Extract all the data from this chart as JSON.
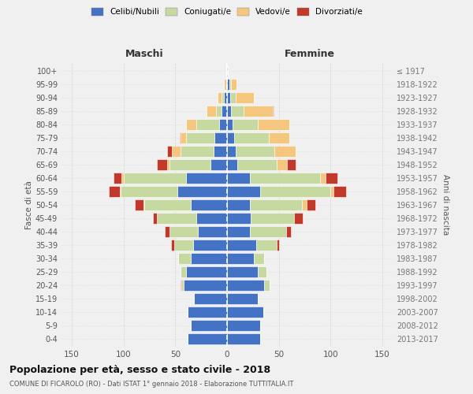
{
  "age_groups": [
    "0-4",
    "5-9",
    "10-14",
    "15-19",
    "20-24",
    "25-29",
    "30-34",
    "35-39",
    "40-44",
    "45-49",
    "50-54",
    "55-59",
    "60-64",
    "65-69",
    "70-74",
    "75-79",
    "80-84",
    "85-89",
    "90-94",
    "95-99",
    "100+"
  ],
  "birth_years": [
    "2013-2017",
    "2008-2012",
    "2003-2007",
    "1998-2002",
    "1993-1997",
    "1988-1992",
    "1983-1987",
    "1978-1982",
    "1973-1977",
    "1968-1972",
    "1963-1967",
    "1958-1962",
    "1953-1957",
    "1948-1952",
    "1943-1947",
    "1938-1942",
    "1933-1937",
    "1928-1932",
    "1923-1927",
    "1918-1922",
    "≤ 1917"
  ],
  "colors": {
    "celibe": "#4472c4",
    "coniugato": "#c5d9a0",
    "vedovo": "#f5c77e",
    "divorziato": "#c0392b"
  },
  "maschi": {
    "celibe": [
      38,
      35,
      38,
      32,
      42,
      40,
      35,
      33,
      28,
      30,
      35,
      48,
      40,
      16,
      13,
      12,
      8,
      5,
      3,
      1,
      1
    ],
    "coniugato": [
      0,
      0,
      0,
      0,
      2,
      5,
      12,
      18,
      28,
      38,
      45,
      55,
      60,
      40,
      32,
      28,
      22,
      6,
      2,
      0,
      0
    ],
    "vedovo": [
      0,
      0,
      0,
      0,
      0,
      0,
      0,
      0,
      0,
      0,
      1,
      1,
      2,
      2,
      8,
      5,
      10,
      9,
      4,
      2,
      0
    ],
    "divorziato": [
      0,
      0,
      0,
      0,
      1,
      0,
      0,
      3,
      4,
      4,
      8,
      10,
      8,
      10,
      5,
      1,
      0,
      0,
      0,
      0,
      0
    ]
  },
  "femmine": {
    "celibe": [
      32,
      32,
      35,
      30,
      36,
      30,
      26,
      28,
      22,
      23,
      22,
      32,
      22,
      10,
      8,
      7,
      5,
      4,
      3,
      2,
      1
    ],
    "coniugato": [
      0,
      0,
      0,
      0,
      5,
      8,
      10,
      20,
      35,
      42,
      50,
      68,
      68,
      38,
      38,
      33,
      25,
      12,
      5,
      2,
      0
    ],
    "vedovo": [
      0,
      0,
      0,
      0,
      0,
      0,
      0,
      0,
      0,
      0,
      5,
      3,
      5,
      10,
      20,
      20,
      30,
      28,
      18,
      5,
      0
    ],
    "divorziato": [
      0,
      0,
      0,
      0,
      0,
      0,
      0,
      2,
      5,
      8,
      8,
      12,
      12,
      8,
      0,
      0,
      0,
      1,
      0,
      0,
      0
    ]
  },
  "xlim": 160,
  "title": "Popolazione per età, sesso e stato civile - 2018",
  "subtitle": "COMUNE DI FICAROLO (RO) - Dati ISTAT 1° gennaio 2018 - Elaborazione TUTTITALIA.IT",
  "ylabel_left": "Fasce di età",
  "ylabel_right": "Anni di nascita",
  "xlabel_left": "Maschi",
  "xlabel_right": "Femmine",
  "background_color": "#f0f0f0",
  "gridcolor": "#cccccc"
}
